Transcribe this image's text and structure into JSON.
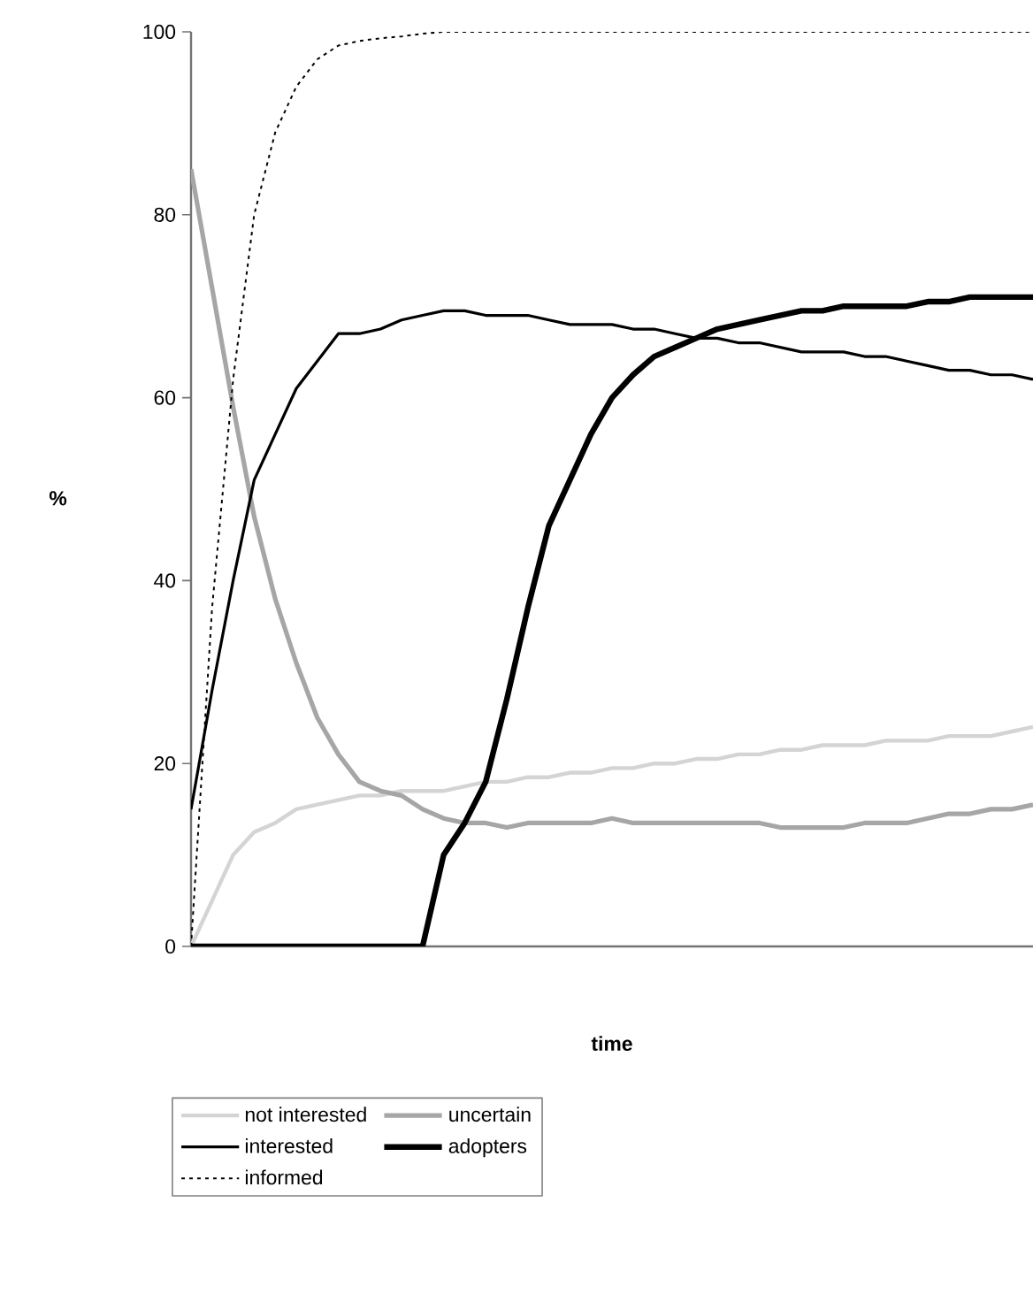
{
  "chart_data": {
    "type": "line",
    "xlabel": "time",
    "ylabel": "%",
    "categories": [
      null,
      null,
      null,
      null,
      null,
      null,
      null,
      null,
      null,
      null,
      null,
      null,
      null,
      null,
      null,
      null,
      null,
      null,
      null,
      null,
      null,
      null,
      null,
      null,
      null,
      null,
      null,
      null,
      null,
      null,
      null,
      null,
      null,
      null,
      null,
      null,
      null,
      null,
      null,
      null,
      null
    ],
    "ylim": [
      0,
      100
    ],
    "yticks": [
      0,
      20,
      40,
      60,
      80,
      100
    ],
    "legend": "bottom",
    "grid": false,
    "series": [
      {
        "name": "not interested",
        "color": "#d4d4d4",
        "line_style": "solid",
        "values": [
          0,
          5,
          10,
          12.5,
          13.5,
          15,
          15.5,
          16,
          16.5,
          16.5,
          17,
          17,
          17,
          17.5,
          18,
          18,
          18.5,
          18.5,
          19,
          19,
          19.5,
          19.5,
          20,
          20,
          20.5,
          20.5,
          21,
          21,
          21.5,
          21.5,
          22,
          22,
          22,
          22.5,
          22.5,
          22.5,
          23,
          23,
          23,
          23.5,
          24
        ]
      },
      {
        "name": "uncertain",
        "color": "#a6a6a6",
        "line_style": "solid",
        "values": [
          85,
          72,
          59,
          47,
          38,
          31,
          25,
          21,
          18,
          17,
          16.5,
          15,
          14,
          13.5,
          13.5,
          13,
          13.5,
          13.5,
          13.5,
          13.5,
          14,
          13.5,
          13.5,
          13.5,
          13.5,
          13.5,
          13.5,
          13.5,
          13,
          13,
          13,
          13,
          13.5,
          13.5,
          13.5,
          14,
          14.5,
          14.5,
          15,
          15,
          15.5
        ]
      },
      {
        "name": "interested",
        "color": "#000000",
        "line_style": "solid",
        "values": [
          15,
          28,
          40,
          51,
          56,
          61,
          64,
          67,
          67,
          67.5,
          68.5,
          69,
          69.5,
          69.5,
          69,
          69,
          69,
          68.5,
          68,
          68,
          68,
          67.5,
          67.5,
          67,
          66.5,
          66.5,
          66,
          66,
          65.5,
          65,
          65,
          65,
          64.5,
          64.5,
          64,
          63.5,
          63,
          63,
          62.5,
          62.5,
          62
        ]
      },
      {
        "name": "adopters",
        "color": "#000000",
        "line_style": "solid",
        "values": [
          0,
          0,
          0,
          0,
          0,
          0,
          0,
          0,
          0,
          0,
          0,
          0,
          10,
          13.5,
          18,
          27,
          37,
          46,
          51,
          56,
          60,
          62.5,
          64.5,
          65.5,
          66.5,
          67.5,
          68,
          68.5,
          69,
          69.5,
          69.5,
          70,
          70,
          70,
          70,
          70.5,
          70.5,
          71,
          71,
          71,
          71
        ]
      },
      {
        "name": "informed",
        "color": "#000000",
        "line_style": "dotted",
        "values": [
          0,
          37,
          62,
          80,
          89,
          94,
          97,
          98.5,
          99,
          99.3,
          99.5,
          99.8,
          100,
          100,
          100,
          100,
          100,
          100,
          100,
          100,
          100,
          100,
          100,
          100,
          100,
          100,
          100,
          100,
          100,
          100,
          100,
          100,
          100,
          100,
          100,
          100,
          100,
          100,
          100,
          100,
          100
        ]
      }
    ]
  }
}
